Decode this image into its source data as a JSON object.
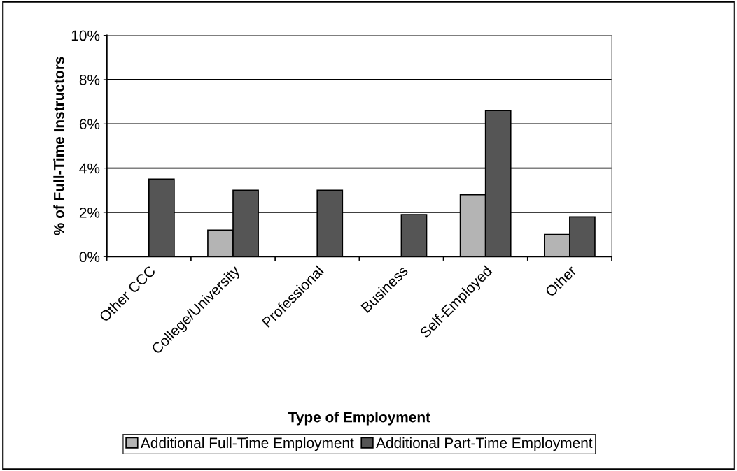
{
  "chart_data": {
    "type": "bar",
    "xlabel": "Type of Employment",
    "ylabel": "% of Full-Time Instructors",
    "categories": [
      "Other CCC",
      "College/University",
      "Professional",
      "Business",
      "Self-Employed",
      "Other"
    ],
    "series": [
      {
        "name": "Additional Full-Time Employment",
        "color": "#b4b4b4",
        "values": [
          null,
          1.2,
          null,
          null,
          2.8,
          1.0
        ]
      },
      {
        "name": "Additional Part-Time Employment",
        "color": "#555555",
        "values": [
          3.5,
          3.0,
          3.0,
          1.9,
          6.6,
          1.8
        ]
      }
    ],
    "ylim": [
      0,
      10
    ],
    "yticks": [
      {
        "value": 0,
        "label": "0%"
      },
      {
        "value": 2,
        "label": "2%"
      },
      {
        "value": 4,
        "label": "4%"
      },
      {
        "value": 6,
        "label": "6%"
      },
      {
        "value": 8,
        "label": "8%"
      },
      {
        "value": 10,
        "label": "10%"
      }
    ],
    "grid": "y",
    "legend": "bottom"
  }
}
